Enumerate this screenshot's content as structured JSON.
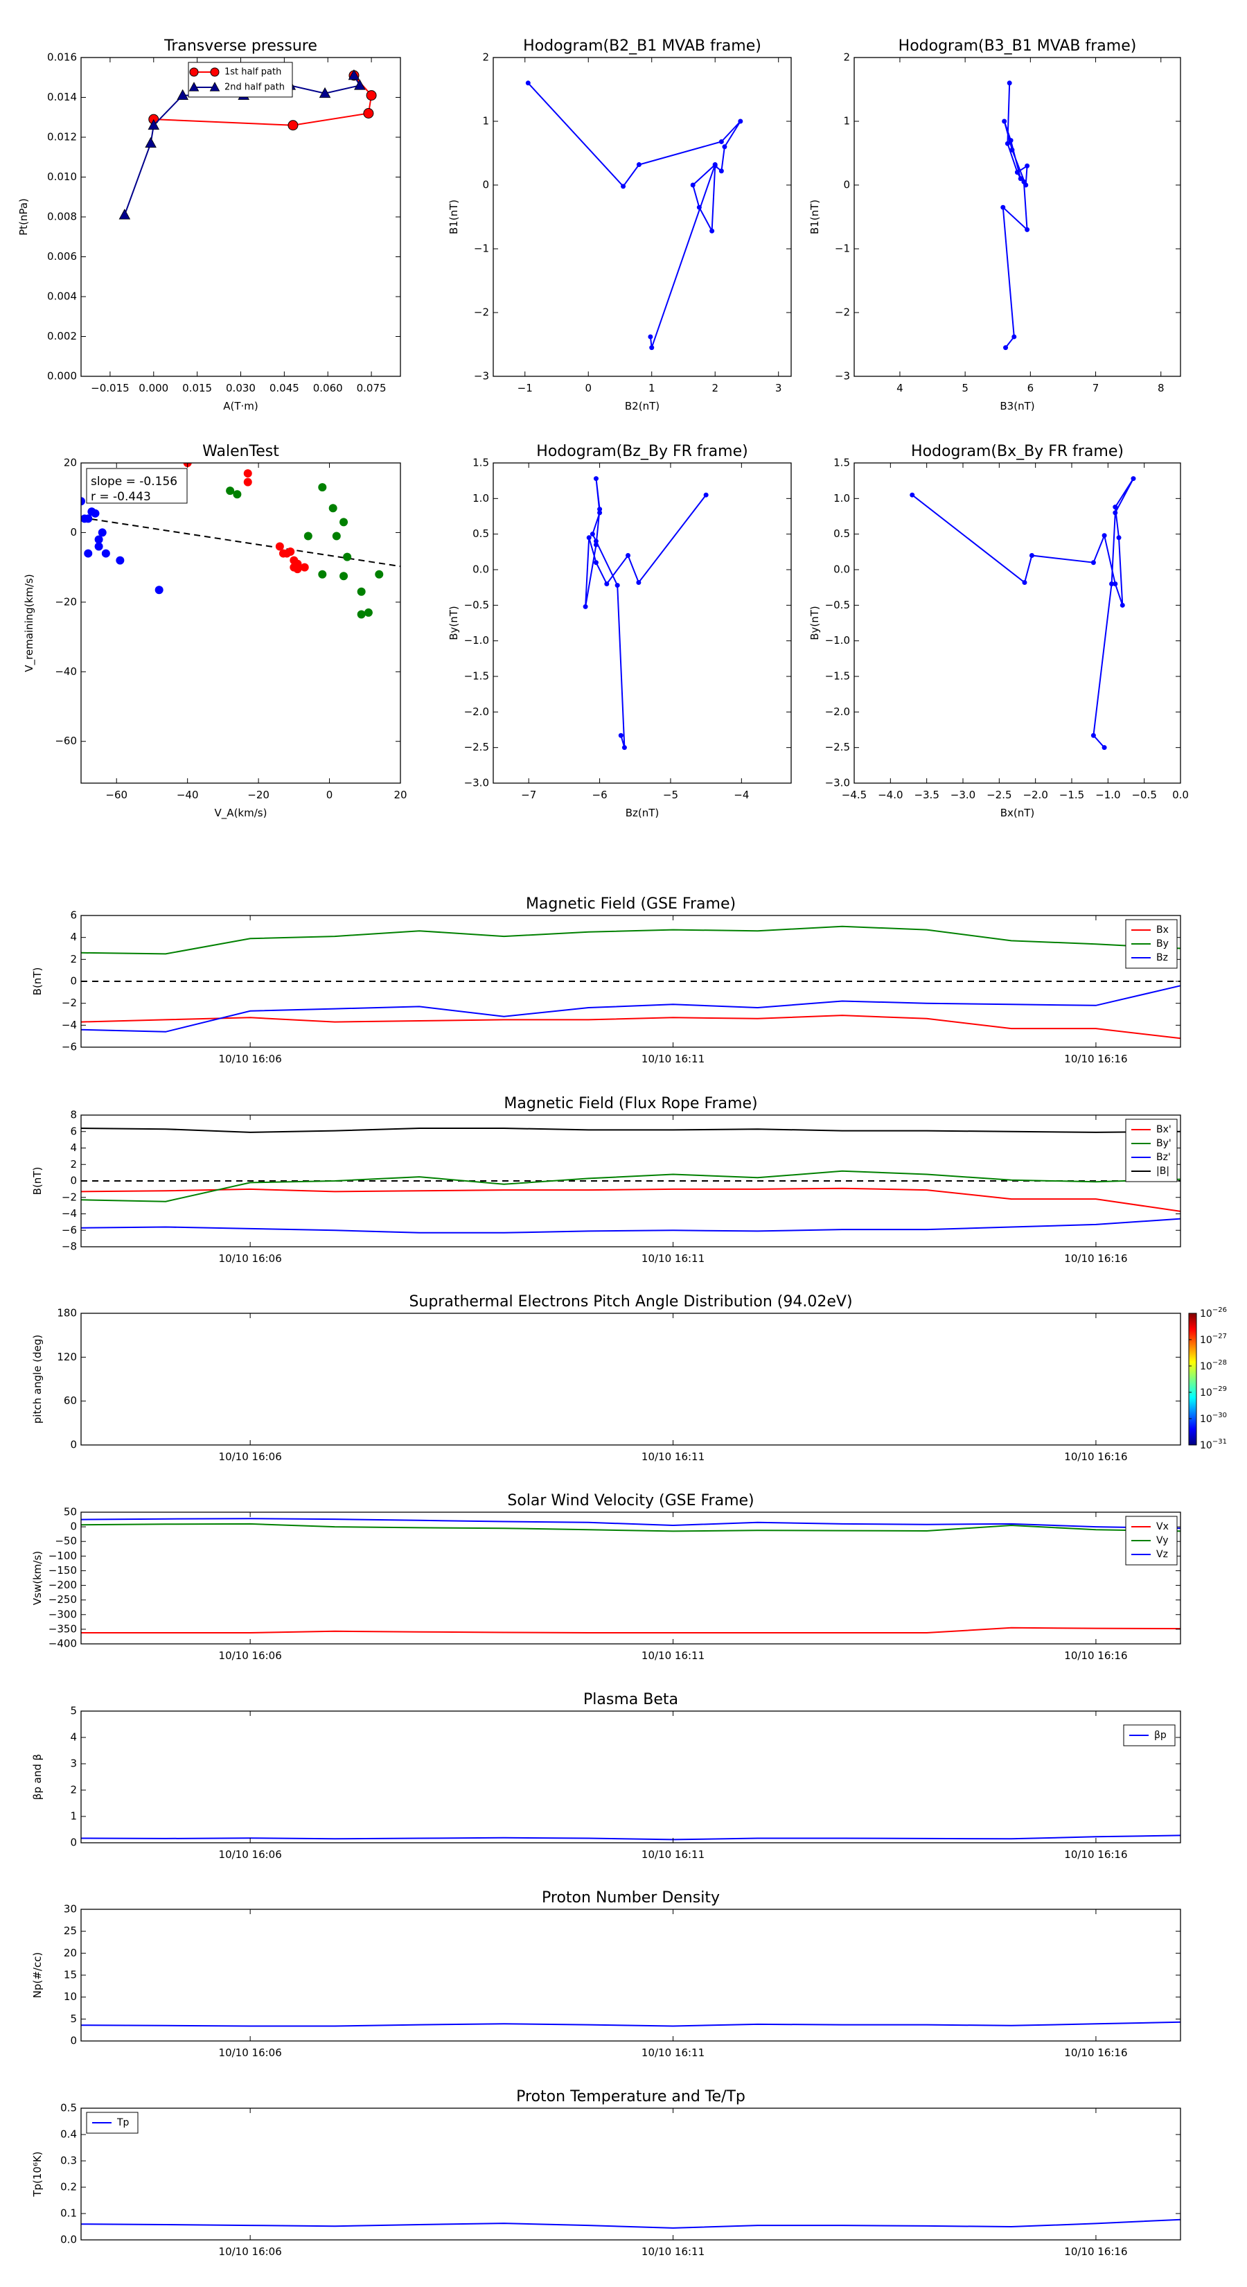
{
  "chart_data": [
    {
      "type": "scatter",
      "title": "Transverse pressure",
      "xlabel": "A(T·m)",
      "ylabel": "Pt(nPa)",
      "xlim": [
        -0.025,
        0.085
      ],
      "ylim": [
        0,
        0.016
      ],
      "xticks": [
        -0.015,
        0.0,
        0.015,
        0.03,
        0.045,
        0.06,
        0.075
      ],
      "xtick_labels": [
        "−0.015",
        "0.000",
        "0.015",
        "0.030",
        "0.045",
        "0.060",
        "0.075"
      ],
      "yticks": [
        0,
        0.002,
        0.004,
        0.006,
        0.008,
        0.01,
        0.012,
        0.014,
        0.016
      ],
      "ytick_labels": [
        "0.000",
        "0.002",
        "0.004",
        "0.006",
        "0.008",
        "0.010",
        "0.012",
        "0.014",
        "0.016"
      ],
      "legend_position": "top",
      "series": [
        {
          "name": "1st half path",
          "color": "#ff0000",
          "marker": "circle",
          "x": [
            0.0,
            0.048,
            0.074,
            0.075,
            0.069
          ],
          "y": [
            0.0129,
            0.0126,
            0.0132,
            0.0141,
            0.0151
          ]
        },
        {
          "name": "2nd half path",
          "color": "#00008b",
          "marker": "triangle",
          "x": [
            0.069,
            0.071,
            0.059,
            0.047,
            0.031,
            0.01,
            0.0,
            -0.001,
            -0.01
          ],
          "y": [
            0.0151,
            0.0146,
            0.0142,
            0.0146,
            0.0141,
            0.0141,
            0.0126,
            0.0117,
            0.0081
          ]
        }
      ]
    },
    {
      "type": "line",
      "title": "Hodogram(B2_B1 MVAB frame)",
      "xlabel": "B2(nT)",
      "ylabel": "B1(nT)",
      "xlim": [
        -1.5,
        3.2
      ],
      "ylim": [
        -3,
        2
      ],
      "xticks": [
        -1,
        0,
        1,
        2,
        3
      ],
      "xtick_labels": [
        "−1",
        "0",
        "1",
        "2",
        "3"
      ],
      "yticks": [
        -3,
        -2,
        -1,
        0,
        1,
        2
      ],
      "ytick_labels": [
        "−3",
        "−2",
        "−1",
        "0",
        "1",
        "2"
      ],
      "color": "#0000ff",
      "x": [
        -0.95,
        0.55,
        0.8,
        2.1,
        2.4,
        2.15,
        2.1,
        2.0,
        1.95,
        1.75,
        1.65,
        2.0,
        1.0,
        0.98
      ],
      "y": [
        1.6,
        -0.02,
        0.32,
        0.68,
        1.0,
        0.6,
        0.22,
        0.3,
        -0.72,
        -0.35,
        0.0,
        0.32,
        -2.55,
        -2.38
      ]
    },
    {
      "type": "line",
      "title": "Hodogram(B3_B1 MVAB frame)",
      "xlabel": "B3(nT)",
      "ylabel": "B1(nT)",
      "xlim": [
        3.3,
        8.3
      ],
      "ylim": [
        -3,
        2
      ],
      "xticks": [
        4,
        5,
        6,
        7,
        8
      ],
      "xtick_labels": [
        "4",
        "5",
        "6",
        "7",
        "8"
      ],
      "yticks": [
        -3,
        -2,
        -1,
        0,
        1,
        2
      ],
      "ytick_labels": [
        "−3",
        "−2",
        "−1",
        "0",
        "1",
        "2"
      ],
      "color": "#0000ff",
      "x": [
        5.68,
        5.65,
        5.8,
        5.95,
        5.93,
        5.72,
        5.6,
        5.7,
        5.85,
        5.8,
        5.9,
        5.95,
        5.58,
        5.75,
        5.62
      ],
      "y": [
        1.6,
        0.65,
        0.2,
        0.3,
        0.0,
        0.55,
        1.0,
        0.7,
        0.1,
        0.2,
        0.05,
        -0.7,
        -0.35,
        -2.38,
        -2.55
      ]
    },
    {
      "type": "scatter",
      "title": "WalenTest",
      "xlabel": "V_A(km/s)",
      "ylabel": "V_remaining(km/s)",
      "xlim": [
        -70,
        20
      ],
      "ylim": [
        -72,
        20
      ],
      "xticks": [
        -60,
        -40,
        -20,
        0,
        20
      ],
      "xtick_labels": [
        "−60",
        "−40",
        "−20",
        "0",
        "20"
      ],
      "yticks": [
        -60,
        -40,
        -20,
        0,
        20
      ],
      "ytick_labels": [
        "−60",
        "−40",
        "−20",
        "0",
        "20"
      ],
      "annotation_lines": [
        "slope = -0.156",
        "r = -0.443"
      ],
      "fit_line": {
        "slope": -0.156,
        "intercept": -6.6
      },
      "series": [
        {
          "color": "#0000ff",
          "x": [
            -70,
            -69,
            -68,
            -67,
            -66,
            -65,
            -65,
            -64,
            -63,
            -68,
            -59,
            -48
          ],
          "y": [
            9,
            4,
            4,
            6,
            5.5,
            -2,
            -4,
            0,
            -6,
            -6,
            -8,
            -16.5
          ]
        },
        {
          "color": "#ff0000",
          "x": [
            -40,
            -23,
            -23,
            -14,
            -13,
            -11,
            -12,
            -10,
            -10,
            -9,
            -9,
            -7
          ],
          "y": [
            20,
            17,
            14.5,
            -4,
            -6,
            -5.5,
            -6,
            -8,
            -10,
            -10.5,
            -9,
            -10
          ]
        },
        {
          "color": "#008000",
          "x": [
            -28,
            -26,
            -2,
            1,
            2,
            4,
            5,
            -6,
            -2,
            4,
            9,
            9,
            11,
            14
          ],
          "y": [
            12,
            11,
            13,
            7,
            -1,
            3,
            -7,
            -1,
            -12,
            -12.5,
            -17,
            -23.5,
            -23,
            -12
          ]
        }
      ]
    },
    {
      "type": "line",
      "title": "Hodogram(Bz_By FR frame)",
      "xlabel": "Bz(nT)",
      "ylabel": "By(nT)",
      "xlim": [
        -7.5,
        -3.3
      ],
      "ylim": [
        -3,
        1.5
      ],
      "xticks": [
        -7,
        -6,
        -5,
        -4
      ],
      "xtick_labels": [
        "−7",
        "−6",
        "−5",
        "−4"
      ],
      "yticks": [
        -3.0,
        -2.5,
        -2.0,
        -1.5,
        -1.0,
        -0.5,
        0.0,
        0.5,
        1.0,
        1.5
      ],
      "ytick_labels": [
        "−3.0",
        "−2.5",
        "−2.0",
        "−1.5",
        "−1.0",
        "−0.5",
        "0.0",
        "0.5",
        "1.0",
        "1.5"
      ],
      "color": "#0000ff",
      "x": [
        -4.5,
        -5.45,
        -5.6,
        -5.9,
        -6.05,
        -6.15,
        -6.2,
        -6.05,
        -6.0,
        -6.05,
        -6.0,
        -6.1,
        -6.05,
        -5.75,
        -5.65,
        -5.7
      ],
      "y": [
        1.05,
        -0.18,
        0.2,
        -0.2,
        0.1,
        0.45,
        -0.52,
        0.35,
        0.85,
        1.28,
        0.8,
        0.5,
        0.4,
        -0.22,
        -2.5,
        -2.33
      ]
    },
    {
      "type": "line",
      "title": "Hodogram(Bx_By FR frame)",
      "xlabel": "Bx(nT)",
      "ylabel": "By(nT)",
      "xlim": [
        -4.5,
        0
      ],
      "ylim": [
        -3,
        1.5
      ],
      "xticks": [
        -4.5,
        -4.0,
        -3.5,
        -3.0,
        -2.5,
        -2.0,
        -1.5,
        -1.0,
        -0.5,
        0.0
      ],
      "xtick_labels": [
        "−4.5",
        "−4.0",
        "−3.5",
        "−3.0",
        "−2.5",
        "−2.0",
        "−1.5",
        "−1.0",
        "−0.5",
        "0.0"
      ],
      "yticks": [
        -3.0,
        -2.5,
        -2.0,
        -1.5,
        -1.0,
        -0.5,
        0.0,
        0.5,
        1.0,
        1.5
      ],
      "ytick_labels": [
        "−3.0",
        "−2.5",
        "−2.0",
        "−1.5",
        "−1.0",
        "−0.5",
        "0.0",
        "0.5",
        "1.0",
        "1.5"
      ],
      "color": "#0000ff",
      "x": [
        -3.7,
        -2.15,
        -2.05,
        -1.2,
        -1.05,
        -0.9,
        -0.8,
        -0.85,
        -0.9,
        -0.65,
        -0.9,
        -0.95,
        -1.2,
        -1.05
      ],
      "y": [
        1.05,
        -0.18,
        0.2,
        0.1,
        0.48,
        -0.2,
        -0.5,
        0.45,
        0.88,
        1.28,
        0.8,
        -0.2,
        -2.33,
        -2.5
      ]
    },
    {
      "type": "line",
      "title": "Magnetic Field (GSE Frame)",
      "ylabel": "B(nT)",
      "x_ticklabels": [
        "10/10 16:06",
        "10/10 16:11",
        "10/10 16:16"
      ],
      "x_tickpos": [
        2,
        7,
        12
      ],
      "x_range": [
        0,
        13
      ],
      "ylim": [
        -6,
        6
      ],
      "yticks": [
        -6,
        -4,
        -2,
        0,
        2,
        4,
        6
      ],
      "ytick_labels": [
        "−6",
        "−4",
        "−2",
        "0",
        "2",
        "4",
        "6"
      ],
      "zero_line": true,
      "legend_position": "right",
      "x": [
        0,
        1,
        2,
        3,
        4,
        5,
        6,
        7,
        8,
        9,
        10,
        11,
        12,
        13
      ],
      "series": [
        {
          "name": "Bx",
          "color": "#ff0000",
          "values": [
            -3.7,
            -3.5,
            -3.3,
            -3.7,
            -3.6,
            -3.5,
            -3.5,
            -3.3,
            -3.4,
            -3.1,
            -3.4,
            -4.3,
            -4.3,
            -5.2
          ]
        },
        {
          "name": "By",
          "color": "#008000",
          "values": [
            2.6,
            2.5,
            3.9,
            4.1,
            4.6,
            4.1,
            4.5,
            4.7,
            4.6,
            5.0,
            4.7,
            3.7,
            3.4,
            3.0
          ]
        },
        {
          "name": "Bz",
          "color": "#0000ff",
          "values": [
            -4.4,
            -4.6,
            -2.7,
            -2.5,
            -2.3,
            -3.2,
            -2.4,
            -2.1,
            -2.4,
            -1.8,
            -2.0,
            -2.1,
            -2.2,
            -0.4
          ]
        }
      ]
    },
    {
      "type": "line",
      "title": "Magnetic Field (Flux Rope Frame)",
      "ylabel": "B(nT)",
      "x_ticklabels": [
        "10/10 16:06",
        "10/10 16:11",
        "10/10 16:16"
      ],
      "x_tickpos": [
        2,
        7,
        12
      ],
      "x_range": [
        0,
        13
      ],
      "ylim": [
        -8,
        8
      ],
      "yticks": [
        -8,
        -6,
        -4,
        -2,
        0,
        2,
        4,
        6,
        8
      ],
      "ytick_labels": [
        "−8",
        "−6",
        "−4",
        "−2",
        "0",
        "2",
        "4",
        "6",
        "8"
      ],
      "zero_line": true,
      "legend_position": "right",
      "x": [
        0,
        1,
        2,
        3,
        4,
        5,
        6,
        7,
        8,
        9,
        10,
        11,
        12,
        13
      ],
      "series": [
        {
          "name": "Bx'",
          "color": "#ff0000",
          "values": [
            -1.3,
            -1.2,
            -1.0,
            -1.3,
            -1.2,
            -1.1,
            -1.1,
            -1.0,
            -1.0,
            -0.9,
            -1.1,
            -2.2,
            -2.2,
            -3.7
          ]
        },
        {
          "name": "By'",
          "color": "#008000",
          "values": [
            -2.3,
            -2.5,
            -0.2,
            0.0,
            0.5,
            -0.4,
            0.3,
            0.8,
            0.4,
            1.2,
            0.8,
            0.1,
            -0.1,
            0.2
          ]
        },
        {
          "name": "Bz'",
          "color": "#0000ff",
          "values": [
            -5.7,
            -5.6,
            -5.8,
            -6.0,
            -6.3,
            -6.3,
            -6.1,
            -6.0,
            -6.1,
            -5.9,
            -5.9,
            -5.6,
            -5.3,
            -4.6
          ]
        },
        {
          "name": "|B|",
          "color": "#000000",
          "values": [
            6.4,
            6.3,
            5.9,
            6.1,
            6.4,
            6.4,
            6.2,
            6.2,
            6.3,
            6.1,
            6.1,
            6.0,
            5.9,
            6.0
          ]
        }
      ]
    },
    {
      "type": "heatmap",
      "title": "Suprathermal Electrons Pitch Angle Distribution (94.02eV)",
      "ylabel": "pitch angle (deg)",
      "x_ticklabels": [
        "10/10 16:06",
        "10/10 16:11",
        "10/10 16:16"
      ],
      "x_tickpos": [
        2,
        7,
        12
      ],
      "x_range": [
        0,
        13
      ],
      "ylim": [
        0,
        180
      ],
      "yticks": [
        0,
        60,
        120,
        180
      ],
      "ytick_labels": [
        "0",
        "60",
        "120",
        "180"
      ],
      "colorbar": {
        "log_scale": true,
        "range": [
          -31,
          -26
        ],
        "base_labels": [
          "10",
          "10",
          "10",
          "10",
          "10",
          "10"
        ],
        "exponent_labels": [
          "−26",
          "−27",
          "−28",
          "−29",
          "−30",
          "−31"
        ],
        "exponents": [
          -26,
          -27,
          -28,
          -29,
          -30,
          -31
        ]
      }
    },
    {
      "type": "line",
      "title": "Solar Wind Velocity (GSE Frame)",
      "ylabel": "Vsw(km/s)",
      "x_ticklabels": [
        "10/10 16:06",
        "10/10 16:11",
        "10/10 16:16"
      ],
      "x_tickpos": [
        2,
        7,
        12
      ],
      "x_range": [
        0,
        13
      ],
      "ylim": [
        -400,
        50
      ],
      "yticks": [
        -400,
        -350,
        -300,
        -250,
        -200,
        -150,
        -100,
        -50,
        0,
        50
      ],
      "ytick_labels": [
        "−400",
        "−350",
        "−300",
        "−250",
        "−200",
        "−150",
        "−100",
        "−50",
        "0",
        "50"
      ],
      "legend_position": "right",
      "x": [
        0,
        1,
        2,
        3,
        4,
        5,
        6,
        7,
        8,
        9,
        10,
        11,
        12,
        13
      ],
      "series": [
        {
          "name": "Vx",
          "color": "#ff0000",
          "values": [
            -362,
            -362,
            -362,
            -357,
            -359,
            -361,
            -362,
            -362,
            -362,
            -362,
            -362,
            -345,
            -347,
            -348
          ]
        },
        {
          "name": "Vy",
          "color": "#008000",
          "values": [
            7,
            9,
            10,
            0,
            -3,
            -5,
            -10,
            -15,
            -12,
            -13,
            -14,
            5,
            -10,
            -15
          ]
        },
        {
          "name": "Vz",
          "color": "#0000ff",
          "values": [
            25,
            27,
            28,
            26,
            22,
            18,
            15,
            5,
            15,
            10,
            8,
            10,
            0,
            -5
          ]
        }
      ]
    },
    {
      "type": "line",
      "title": "Plasma Beta",
      "ylabel": "βp and β",
      "x_ticklabels": [
        "10/10 16:06",
        "10/10 16:11",
        "10/10 16:16"
      ],
      "x_tickpos": [
        2,
        7,
        12
      ],
      "x_range": [
        0,
        13
      ],
      "ylim": [
        0,
        5
      ],
      "yticks": [
        0,
        1,
        2,
        3,
        4,
        5
      ],
      "ytick_labels": [
        "0",
        "1",
        "2",
        "3",
        "4",
        "5"
      ],
      "legend_position": "top-right",
      "x": [
        0,
        1,
        2,
        3,
        4,
        5,
        6,
        7,
        8,
        9,
        10,
        11,
        12,
        13
      ],
      "series": [
        {
          "name": "βp",
          "color": "#0000ff",
          "values": [
            0.17,
            0.16,
            0.18,
            0.15,
            0.17,
            0.19,
            0.17,
            0.12,
            0.17,
            0.17,
            0.16,
            0.15,
            0.23,
            0.28
          ]
        }
      ]
    },
    {
      "type": "line",
      "title": "Proton Number Density",
      "ylabel": "Np(#/cc)",
      "x_ticklabels": [
        "10/10 16:06",
        "10/10 16:11",
        "10/10 16:16"
      ],
      "x_tickpos": [
        2,
        7,
        12
      ],
      "x_range": [
        0,
        13
      ],
      "ylim": [
        0,
        30
      ],
      "yticks": [
        0,
        5,
        10,
        15,
        20,
        25,
        30
      ],
      "ytick_labels": [
        "0",
        "5",
        "10",
        "15",
        "20",
        "25",
        "30"
      ],
      "x": [
        0,
        1,
        2,
        3,
        4,
        5,
        6,
        7,
        8,
        9,
        10,
        11,
        12,
        13
      ],
      "series": [
        {
          "color": "#0000ff",
          "values": [
            3.6,
            3.5,
            3.4,
            3.4,
            3.7,
            3.9,
            3.7,
            3.4,
            3.8,
            3.7,
            3.7,
            3.5,
            3.9,
            4.3
          ]
        }
      ]
    },
    {
      "type": "line",
      "title": "Proton Temperature and Te/Tp",
      "ylabel": "Tp(10⁶K)",
      "x_ticklabels": [
        "10/10 16:06",
        "10/10 16:11",
        "10/10 16:16"
      ],
      "x_tickpos": [
        2,
        7,
        12
      ],
      "x_range": [
        0,
        13
      ],
      "ylim": [
        0,
        0.5
      ],
      "yticks": [
        0,
        0.1,
        0.2,
        0.3,
        0.4,
        0.5
      ],
      "ytick_labels": [
        "0.0",
        "0.1",
        "0.2",
        "0.3",
        "0.4",
        "0.5"
      ],
      "legend_position": "top-left",
      "x": [
        0,
        1,
        2,
        3,
        4,
        5,
        6,
        7,
        8,
        9,
        10,
        11,
        12,
        13
      ],
      "series": [
        {
          "name": "Tp",
          "color": "#0000ff",
          "values": [
            0.06,
            0.058,
            0.055,
            0.052,
            0.058,
            0.063,
            0.055,
            0.045,
            0.055,
            0.055,
            0.053,
            0.05,
            0.062,
            0.077
          ]
        }
      ]
    }
  ]
}
